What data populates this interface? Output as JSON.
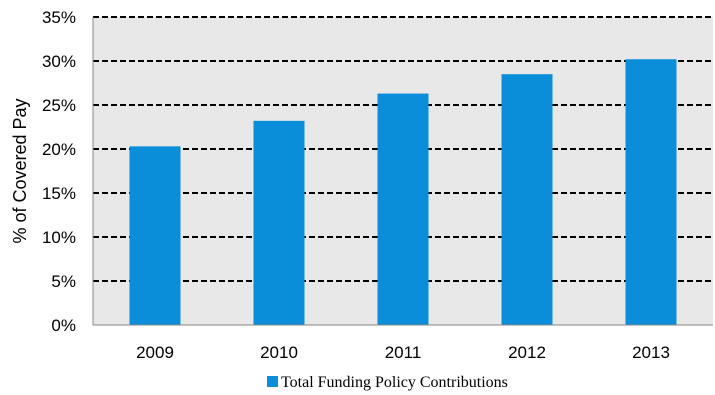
{
  "chart_data": {
    "type": "bar",
    "categories": [
      "2009",
      "2010",
      "2011",
      "2012",
      "2013"
    ],
    "series": [
      {
        "name": "Total Funding Policy Contributions",
        "values": [
          20.3,
          23.2,
          26.3,
          28.5,
          30.2
        ]
      }
    ],
    "ylabel": "% of Covered Pay",
    "xlabel": "",
    "ylim": [
      0,
      35
    ],
    "yticks": [
      0,
      5,
      10,
      15,
      20,
      25,
      30,
      35
    ],
    "ytick_labels": [
      "0%",
      "5%",
      "10%",
      "15%",
      "20%",
      "25%",
      "30%",
      "35%"
    ],
    "grid": true,
    "grid_style": "dashed",
    "legend_position": "bottom-center",
    "colors": {
      "bar": "#0A8ED9",
      "plot_background": "#E8E8E8",
      "grid": "#000000"
    }
  }
}
